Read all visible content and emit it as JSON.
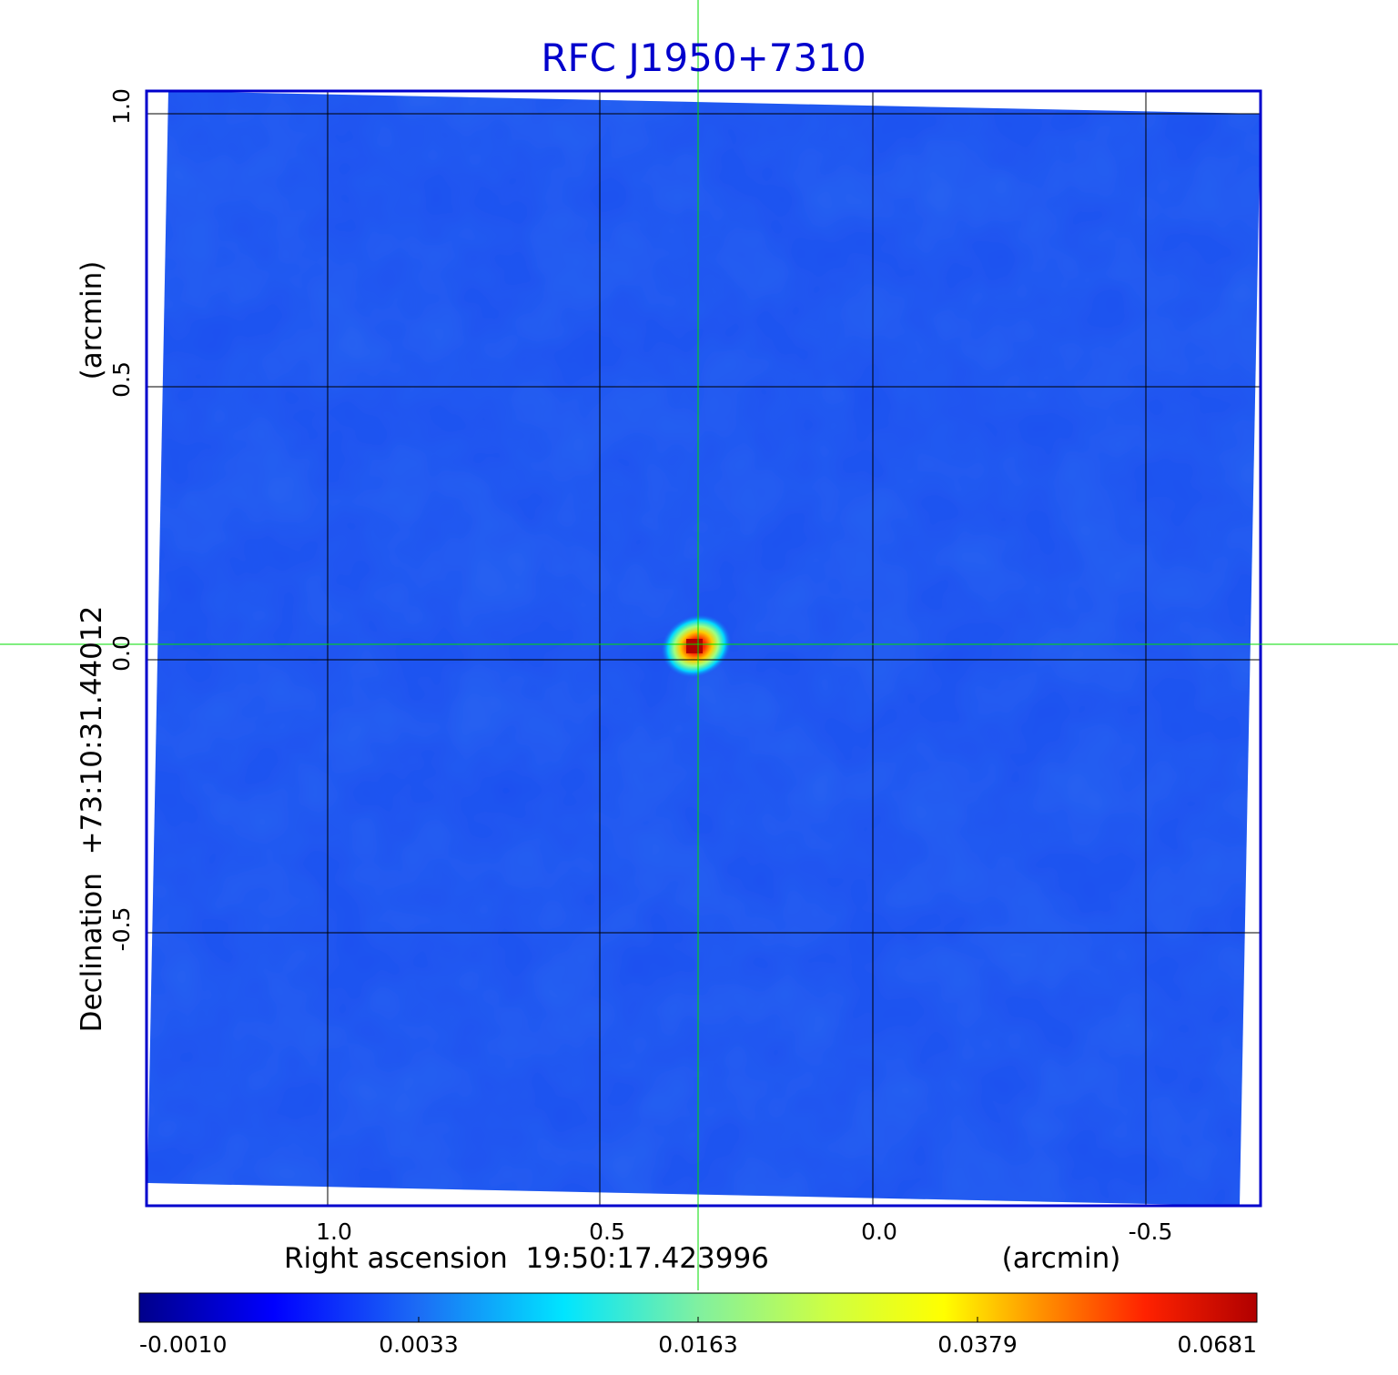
{
  "title": "RFC J1950+7310",
  "ra_axis": {
    "label": "Right ascension  19:50:17.423996",
    "unit": "(arcmin)",
    "ticks": [
      {
        "value": 1.0,
        "label": "1.0"
      },
      {
        "value": 0.5,
        "label": "0.5"
      },
      {
        "value": 0.0,
        "label": "0.0"
      },
      {
        "value": -0.5,
        "label": "-0.5"
      }
    ]
  },
  "dec_axis": {
    "label": "Declination  +73:10:31.44012",
    "unit": "(arcmin)",
    "ticks": [
      {
        "value": 1.0,
        "label": "1.0"
      },
      {
        "value": 0.5,
        "label": "0.5"
      },
      {
        "value": 0.0,
        "label": "0.0"
      },
      {
        "value": -0.5,
        "label": "-0.5"
      }
    ]
  },
  "colorbar": {
    "ticks": [
      "-0.0010",
      "0.0033",
      "0.0163",
      "0.0379",
      "0.0681"
    ]
  },
  "colors": {
    "title": "#0000cc",
    "frame": "#0000cc",
    "crosshair": "#00dd00",
    "background_map": "#1a4ef0",
    "grid": "#000000"
  }
}
